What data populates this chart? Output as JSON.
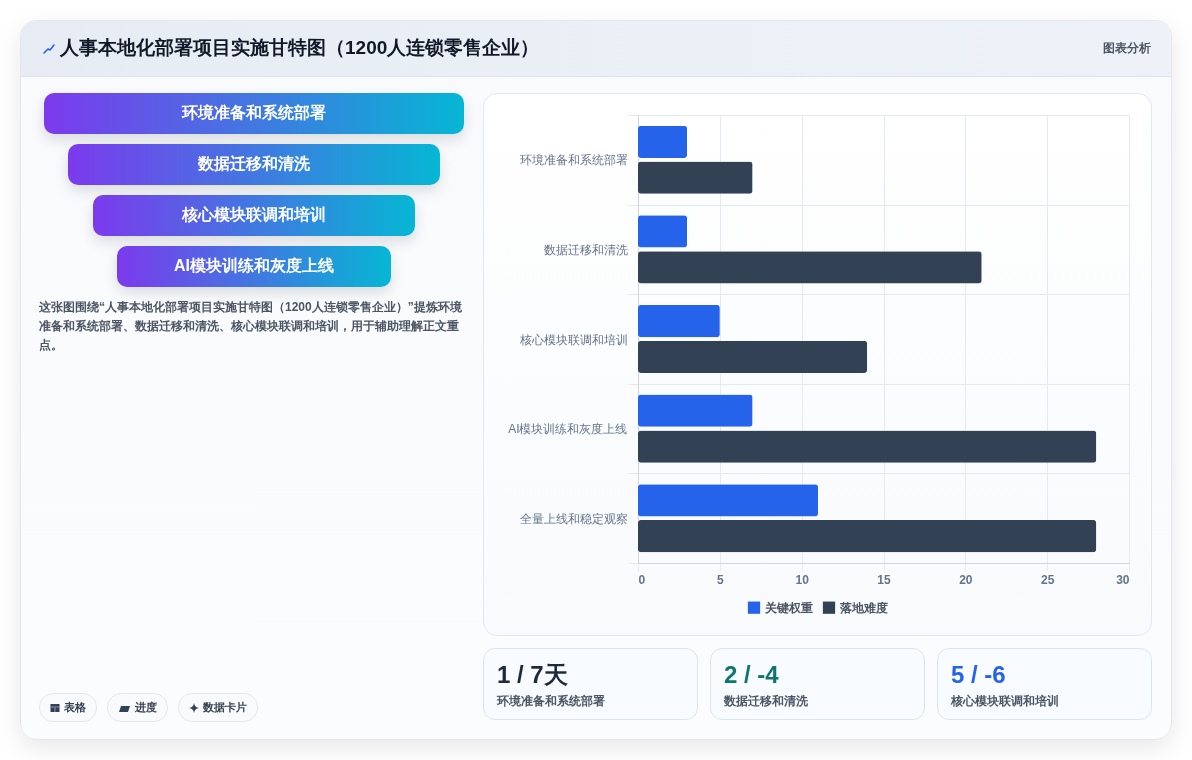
{
  "chart_data": [
    {
      "type": "other",
      "title": "人事本地化部署项目实施甘特图（1200人连锁零售企业）",
      "categories": [
        "环境准备和系统部署",
        "数据迁移和清洗",
        "核心模块联调和培训",
        "AI模块训练和灰度上线"
      ],
      "annotations": [
        "这张图围绕“人事本地化部署项目实施甘特图（1200人连锁零售企业）”提炼环境准备和系统部署、数据迁移和清洗、核心模块联调和培训，用于辅助理解正文重点。",
        "图表分析",
        "表格",
        "进度",
        "数据卡片"
      ]
    },
    {
      "type": "bar",
      "orientation": "horizontal",
      "categories": [
        "环境准备和系统部署",
        "数据迁移和清洗",
        "核心模块联调和培训",
        "AI模块训练和灰度上线",
        "全量上线和稳定观察"
      ],
      "series": [
        {
          "name": "关键权重",
          "color": "#2563eb",
          "values": [
            3,
            3,
            5,
            7,
            11
          ]
        },
        {
          "name": "落地难度",
          "color": "#334155",
          "values": [
            7,
            21,
            14,
            28,
            28
          ]
        }
      ],
      "xlim": [
        0,
        30
      ],
      "xticks": [
        0,
        5,
        10,
        15,
        20,
        25,
        30
      ],
      "grid": true,
      "legend": "bottom"
    },
    {
      "type": "other",
      "categories": [
        "环境准备和系统部署",
        "数据迁移和清洗",
        "核心模块联调和培训"
      ],
      "value_labels": [
        "1 / 7天",
        "2 / -4",
        "5 / -6"
      ],
      "colors": [
        "#1e293b",
        "#0f766e",
        "#2563eb"
      ]
    }
  ]
}
